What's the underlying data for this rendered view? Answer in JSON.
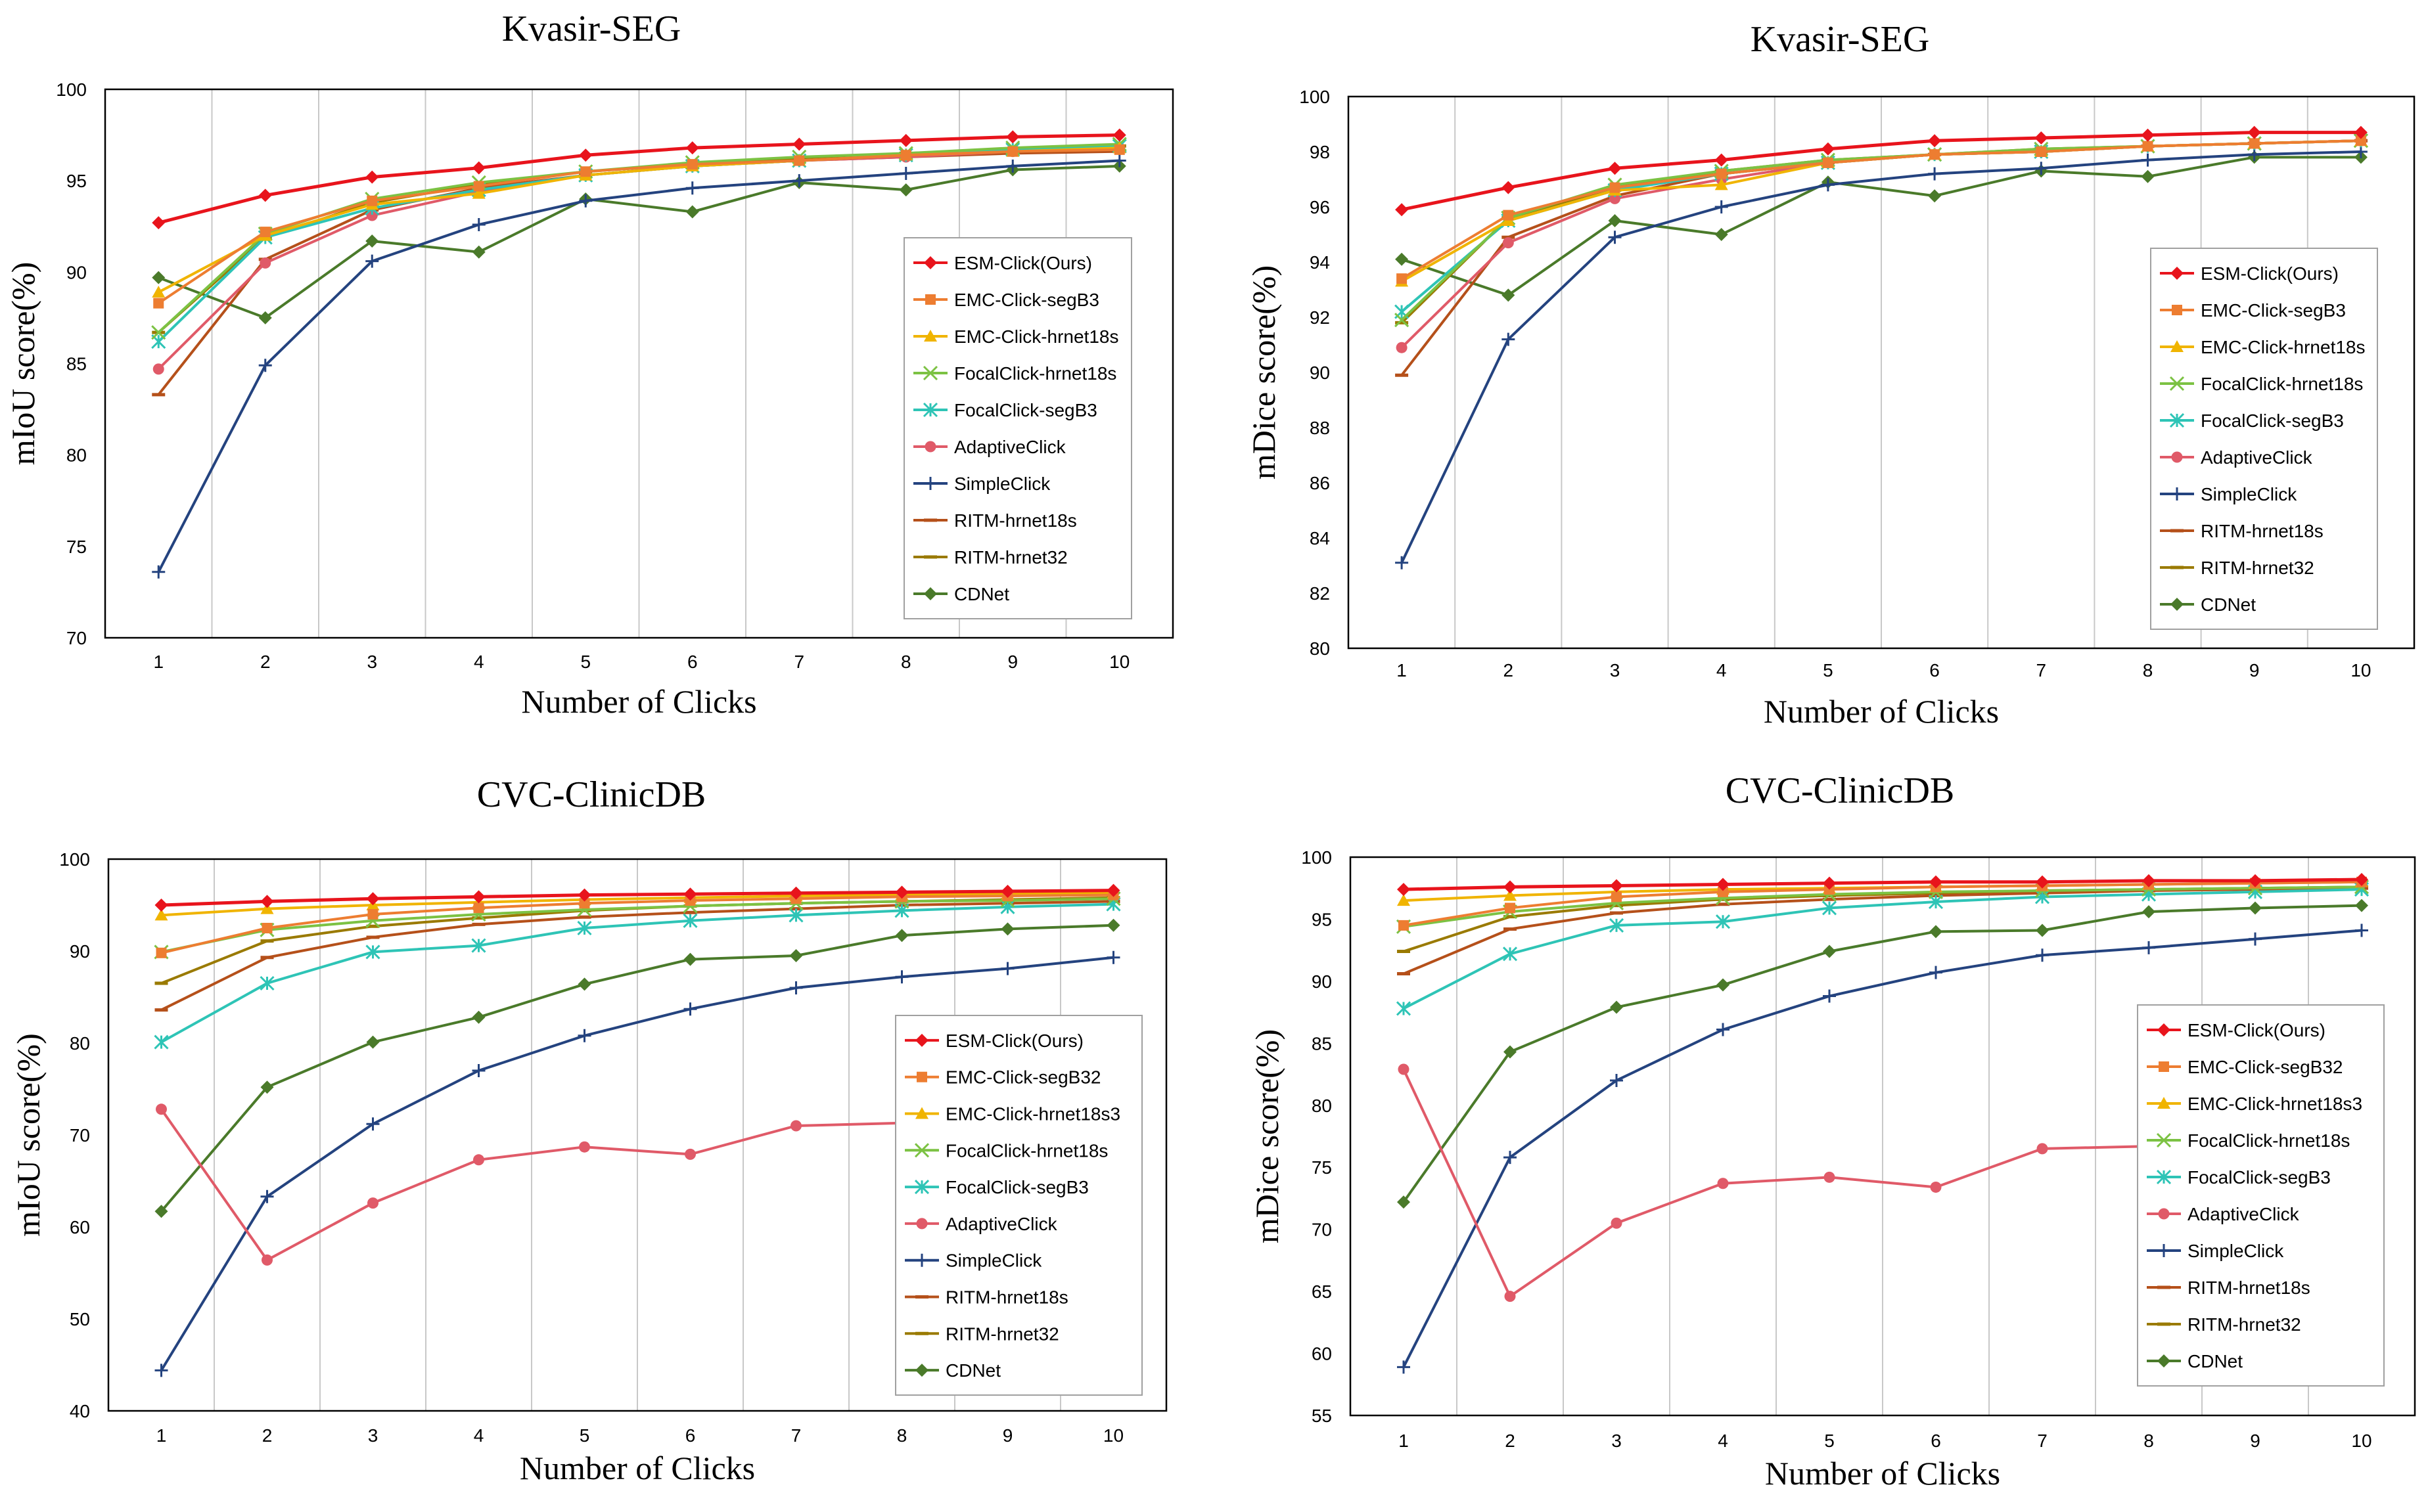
{
  "series_styles": [
    {
      "color": "#e8141c",
      "marker": "diamond"
    },
    {
      "color": "#ed7d31",
      "marker": "square"
    },
    {
      "color": "#f0b400",
      "marker": "triangle"
    },
    {
      "color": "#7cc243",
      "marker": "x"
    },
    {
      "color": "#2ec4b6",
      "marker": "asterisk"
    },
    {
      "color": "#e05a68",
      "marker": "circle"
    },
    {
      "color": "#24437f",
      "marker": "plus"
    },
    {
      "color": "#b5501a",
      "marker": "dash"
    },
    {
      "color": "#9a7a00",
      "marker": "dash"
    },
    {
      "color": "#4a7a2a",
      "marker": "diamond"
    }
  ],
  "chart_data": [
    {
      "type": "line",
      "title": "Kvasir-SEG",
      "xlabel": "Number of Clicks",
      "ylabel": "mIoU score(%)",
      "x": [
        1,
        2,
        3,
        4,
        5,
        6,
        7,
        8,
        9,
        10
      ],
      "ylim": [
        70,
        100
      ],
      "yticks": [
        70,
        75,
        80,
        85,
        90,
        95,
        100
      ],
      "grid": "vertical",
      "legend": "right",
      "series": [
        {
          "name": "ESM-Click(Ours)",
          "values": [
            92.7,
            94.2,
            95.2,
            95.7,
            96.4,
            96.8,
            97.0,
            97.2,
            97.4,
            97.5
          ]
        },
        {
          "name": "EMC-Click-segB3",
          "values": [
            88.3,
            92.2,
            93.9,
            94.7,
            95.5,
            95.9,
            96.1,
            96.4,
            96.6,
            96.7
          ]
        },
        {
          "name": "EMC-Click-hrnet18s",
          "values": [
            88.9,
            92.0,
            93.7,
            94.3,
            95.3,
            95.8,
            96.1,
            96.4,
            96.6,
            96.8
          ]
        },
        {
          "name": "FocalClick-hrnet18s",
          "values": [
            86.7,
            92.1,
            94.0,
            94.9,
            95.5,
            96.0,
            96.3,
            96.5,
            96.8,
            97.0
          ]
        },
        {
          "name": "FocalClick-segB3",
          "values": [
            86.2,
            91.9,
            93.5,
            94.5,
            95.3,
            95.8,
            96.1,
            96.4,
            96.7,
            96.9
          ]
        },
        {
          "name": "AdaptiveClick",
          "values": [
            84.7,
            90.5,
            93.1,
            94.4,
            95.3,
            95.8,
            96.1,
            96.3,
            96.6,
            96.8
          ]
        },
        {
          "name": "SimpleClick",
          "values": [
            73.6,
            84.9,
            90.6,
            92.6,
            93.9,
            94.6,
            95.0,
            95.4,
            95.8,
            96.1
          ]
        },
        {
          "name": "RITM-hrnet18s",
          "values": [
            83.3,
            90.7,
            93.4,
            94.6,
            95.3,
            95.8,
            96.1,
            96.3,
            96.5,
            96.6
          ]
        },
        {
          "name": "RITM-hrnet32",
          "values": [
            86.7,
            91.9,
            93.8,
            94.8,
            95.5,
            95.9,
            96.2,
            96.5,
            96.7,
            96.9
          ]
        },
        {
          "name": "CDNet",
          "values": [
            89.7,
            87.5,
            91.7,
            91.1,
            94.0,
            93.3,
            94.9,
            94.5,
            95.6,
            95.8
          ]
        }
      ]
    },
    {
      "type": "line",
      "title": "Kvasir-SEG",
      "xlabel": "Number of Clicks",
      "ylabel": "mDice score(%)",
      "x": [
        1,
        2,
        3,
        4,
        5,
        6,
        7,
        8,
        9,
        10
      ],
      "ylim": [
        80,
        100
      ],
      "yticks": [
        80,
        82,
        84,
        86,
        88,
        90,
        92,
        94,
        96,
        98,
        100
      ],
      "grid": "vertical",
      "legend": "right",
      "series": [
        {
          "name": "ESM-Click(Ours)",
          "values": [
            95.9,
            96.7,
            97.4,
            97.7,
            98.1,
            98.4,
            98.5,
            98.6,
            98.7,
            98.7
          ]
        },
        {
          "name": "EMC-Click-segB3",
          "values": [
            93.4,
            95.7,
            96.7,
            97.2,
            97.6,
            97.9,
            98.0,
            98.2,
            98.3,
            98.4
          ]
        },
        {
          "name": "EMC-Click-hrnet18s",
          "values": [
            93.3,
            95.5,
            96.6,
            96.8,
            97.6,
            97.9,
            98.0,
            98.2,
            98.3,
            98.4
          ]
        },
        {
          "name": "FocalClick-hrnet18s",
          "values": [
            91.9,
            95.6,
            96.8,
            97.3,
            97.7,
            97.9,
            98.1,
            98.2,
            98.3,
            98.4
          ]
        },
        {
          "name": "FocalClick-segB3",
          "values": [
            92.2,
            95.5,
            96.6,
            97.2,
            97.6,
            97.9,
            98.0,
            98.2,
            98.3,
            98.4
          ]
        },
        {
          "name": "AdaptiveClick",
          "values": [
            90.9,
            94.7,
            96.3,
            97.0,
            97.6,
            97.9,
            98.0,
            98.2,
            98.3,
            98.4
          ]
        },
        {
          "name": "SimpleClick",
          "values": [
            83.1,
            91.2,
            94.9,
            96.0,
            96.8,
            97.2,
            97.4,
            97.7,
            97.9,
            98.0
          ]
        },
        {
          "name": "RITM-hrnet18s",
          "values": [
            89.9,
            94.9,
            96.4,
            97.2,
            97.6,
            97.9,
            98.0,
            98.2,
            98.3,
            98.4
          ]
        },
        {
          "name": "RITM-hrnet32",
          "values": [
            91.8,
            95.6,
            96.7,
            97.3,
            97.7,
            97.9,
            98.1,
            98.2,
            98.3,
            98.4
          ]
        },
        {
          "name": "CDNet",
          "values": [
            94.1,
            92.8,
            95.5,
            95.0,
            96.9,
            96.4,
            97.3,
            97.1,
            97.8,
            97.8
          ]
        }
      ]
    },
    {
      "type": "line",
      "title": "CVC-ClinicDB",
      "xlabel": "Number of Clicks",
      "ylabel": "mIoU score(%)",
      "x": [
        1,
        2,
        3,
        4,
        5,
        6,
        7,
        8,
        9,
        10
      ],
      "ylim": [
        40,
        100
      ],
      "yticks": [
        40,
        50,
        60,
        70,
        80,
        90,
        100
      ],
      "grid": "vertical",
      "legend": "right",
      "series": [
        {
          "name": "ESM-Click(Ours)",
          "values": [
            95.0,
            95.4,
            95.7,
            95.9,
            96.1,
            96.2,
            96.3,
            96.4,
            96.5,
            96.6
          ]
        },
        {
          "name": "EMC-Click-segB32",
          "values": [
            89.8,
            92.5,
            94.0,
            94.7,
            95.2,
            95.5,
            95.7,
            95.9,
            96.0,
            96.1
          ]
        },
        {
          "name": "EMC-Click-hrnet18s3",
          "values": [
            93.9,
            94.6,
            95.0,
            95.3,
            95.6,
            95.8,
            96.0,
            96.1,
            96.2,
            96.3
          ]
        },
        {
          "name": "FocalClick-hrnet18s",
          "values": [
            89.9,
            92.3,
            93.3,
            94.0,
            94.5,
            94.9,
            95.2,
            95.4,
            95.5,
            95.7
          ]
        },
        {
          "name": "FocalClick-segB3",
          "values": [
            80.1,
            86.5,
            89.9,
            90.6,
            92.5,
            93.3,
            93.9,
            94.4,
            94.8,
            95.1
          ]
        },
        {
          "name": "AdaptiveClick",
          "values": [
            72.8,
            56.4,
            62.6,
            67.3,
            68.7,
            67.9,
            71.0,
            71.3,
            70.4,
            70.8
          ]
        },
        {
          "name": "SimpleClick",
          "values": [
            44.4,
            63.3,
            71.2,
            77.0,
            80.8,
            83.7,
            86.0,
            87.2,
            88.1,
            89.3
          ]
        },
        {
          "name": "RITM-hrnet18s",
          "values": [
            83.6,
            89.3,
            91.5,
            92.9,
            93.7,
            94.2,
            94.6,
            95.0,
            95.2,
            95.4
          ]
        },
        {
          "name": "RITM-hrnet32",
          "values": [
            86.5,
            91.1,
            92.7,
            93.6,
            94.4,
            94.9,
            95.2,
            95.4,
            95.6,
            95.8
          ]
        },
        {
          "name": "CDNet",
          "values": [
            61.7,
            75.2,
            80.1,
            82.8,
            86.4,
            89.1,
            89.5,
            91.7,
            92.4,
            92.8
          ]
        }
      ]
    },
    {
      "type": "line",
      "title": "CVC-ClinicDB",
      "xlabel": "Number of Clicks",
      "ylabel": "mDice score(%)",
      "x": [
        1,
        2,
        3,
        4,
        5,
        6,
        7,
        8,
        9,
        10
      ],
      "ylim": [
        55,
        100
      ],
      "yticks": [
        55,
        60,
        65,
        70,
        75,
        80,
        85,
        90,
        95,
        100
      ],
      "grid": "vertical",
      "legend": "right",
      "series": [
        {
          "name": "ESM-Click(Ours)",
          "values": [
            97.4,
            97.6,
            97.7,
            97.8,
            97.9,
            98.0,
            98.0,
            98.1,
            98.1,
            98.2
          ]
        },
        {
          "name": "EMC-Click-segB32",
          "values": [
            94.5,
            95.9,
            96.8,
            97.2,
            97.4,
            97.6,
            97.7,
            97.8,
            97.9,
            98.0
          ]
        },
        {
          "name": "EMC-Click-hrnet18s3",
          "values": [
            96.5,
            96.9,
            97.2,
            97.4,
            97.5,
            97.6,
            97.7,
            97.8,
            97.9,
            98.0
          ]
        },
        {
          "name": "FocalClick-hrnet18s",
          "values": [
            94.4,
            95.6,
            96.3,
            96.7,
            97.0,
            97.2,
            97.3,
            97.4,
            97.5,
            97.6
          ]
        },
        {
          "name": "FocalClick-segB3",
          "values": [
            87.8,
            92.2,
            94.5,
            94.8,
            95.9,
            96.4,
            96.8,
            97.0,
            97.2,
            97.4
          ]
        },
        {
          "name": "AdaptiveClick",
          "values": [
            82.9,
            64.6,
            70.5,
            73.7,
            74.2,
            73.4,
            76.5,
            76.7,
            75.7,
            75.9
          ]
        },
        {
          "name": "SimpleClick",
          "values": [
            58.9,
            75.8,
            82.0,
            86.1,
            88.8,
            90.7,
            92.1,
            92.7,
            93.4,
            94.1
          ]
        },
        {
          "name": "RITM-hrnet18s",
          "values": [
            90.6,
            94.2,
            95.5,
            96.2,
            96.6,
            96.9,
            97.1,
            97.3,
            97.4,
            97.5
          ]
        },
        {
          "name": "RITM-hrnet32",
          "values": [
            92.4,
            95.2,
            96.1,
            96.6,
            96.9,
            97.1,
            97.3,
            97.4,
            97.5,
            97.6
          ]
        },
        {
          "name": "CDNet",
          "values": [
            72.2,
            84.3,
            87.9,
            89.7,
            92.4,
            94.0,
            94.1,
            95.6,
            95.9,
            96.1
          ]
        }
      ]
    }
  ]
}
